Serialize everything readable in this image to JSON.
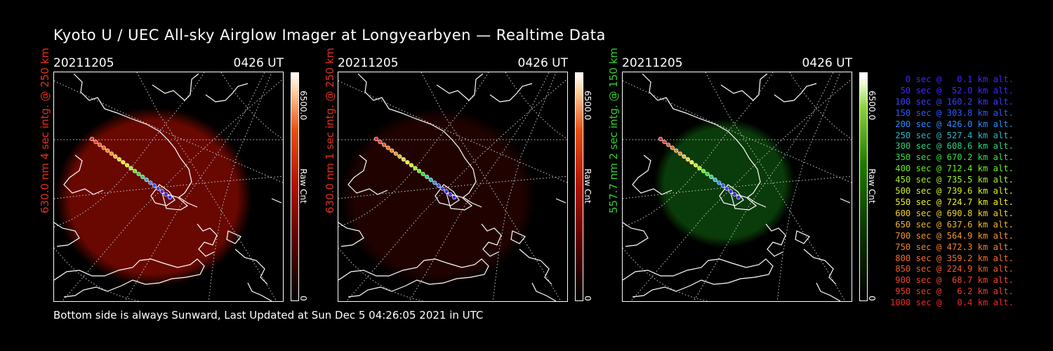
{
  "title": "Kyoto U / UEC All-sky Airglow Imager at Longyearbyen — Realtime Data",
  "footer": "Bottom side is always Sunward, Last Updated at Sun Dec  5 04:26:05 2021 in UTC",
  "panels": [
    {
      "date": "20211205",
      "time": "0426 UT",
      "ylabel": "630.0 nm 4 sec intg. @ 250 km",
      "ylabel_color": "#e03020",
      "cbar_max": "6500.0",
      "cbar_min": "0",
      "cbar_label": "Raw Cnt",
      "glow_color": "#7a0a00",
      "glow_opacity": "0.85"
    },
    {
      "date": "20211205",
      "time": "0426 UT",
      "ylabel": "630.0 nm 1 sec intg. @ 250 km",
      "ylabel_color": "#e03020",
      "cbar_max": "6500.0",
      "cbar_min": "0",
      "cbar_label": "Raw Cnt",
      "glow_color": "#3a0500",
      "glow_opacity": "0.55"
    },
    {
      "date": "20211205",
      "time": "0426 UT",
      "ylabel": "557.7 nm 2 sec intg. @ 150 km",
      "ylabel_color": "#30d030",
      "cbar_max": "6500.0",
      "cbar_min": "0",
      "cbar_label": "Raw Cnt",
      "glow_color": "#0d4a0d",
      "glow_opacity": "0.8"
    }
  ],
  "altitudes": [
    {
      "text": "0 sec @   0.1 km alt.",
      "color": "#3c28ff"
    },
    {
      "text": "50 sec @  52.0 km alt.",
      "color": "#3c28ff"
    },
    {
      "text": "100 sec @ 160.2 km alt.",
      "color": "#3c3cff"
    },
    {
      "text": "150 sec @ 303.8 km alt.",
      "color": "#2a5aff"
    },
    {
      "text": "200 sec @ 426.0 km alt.",
      "color": "#2a8cff"
    },
    {
      "text": "250 sec @ 527.4 km alt.",
      "color": "#28b4c8"
    },
    {
      "text": "300 sec @ 608.6 km alt.",
      "color": "#28d280"
    },
    {
      "text": "350 sec @ 670.2 km alt.",
      "color": "#34e040"
    },
    {
      "text": "400 sec @ 712.4 km alt.",
      "color": "#64f020"
    },
    {
      "text": "450 sec @ 735.5 km alt.",
      "color": "#a0f020"
    },
    {
      "text": "500 sec @ 739.6 km alt.",
      "color": "#d2f020"
    },
    {
      "text": "550 sec @ 724.7 km alt.",
      "color": "#f0f028"
    },
    {
      "text": "600 sec @ 690.8 km alt.",
      "color": "#f0d228"
    },
    {
      "text": "650 sec @ 637.6 km alt.",
      "color": "#f0b428"
    },
    {
      "text": "700 sec @ 564.9 km alt.",
      "color": "#f09628"
    },
    {
      "text": "750 sec @ 472.3 km alt.",
      "color": "#f08228"
    },
    {
      "text": "800 sec @ 359.2 km alt.",
      "color": "#f06e28"
    },
    {
      "text": "850 sec @ 224.9 km alt.",
      "color": "#f05a28"
    },
    {
      "text": "900 sec @  68.7 km alt.",
      "color": "#f04628"
    },
    {
      "text": "950 sec @   6.2 km alt.",
      "color": "#f03c28"
    },
    {
      "text": "1000 sec @   0.4 km alt.",
      "color": "#f02828"
    }
  ],
  "trajectory_colors": [
    "#f02828",
    "#f03c28",
    "#f05a28",
    "#f06e28",
    "#f08228",
    "#f09628",
    "#f0b428",
    "#f0d228",
    "#f0f028",
    "#d2f020",
    "#a0f020",
    "#64f020",
    "#34e040",
    "#28d280",
    "#28b4c8",
    "#2a8cff",
    "#2a5aff",
    "#3c3cff",
    "#3c28ff",
    "#3c28ff",
    "#3c28ff"
  ]
}
